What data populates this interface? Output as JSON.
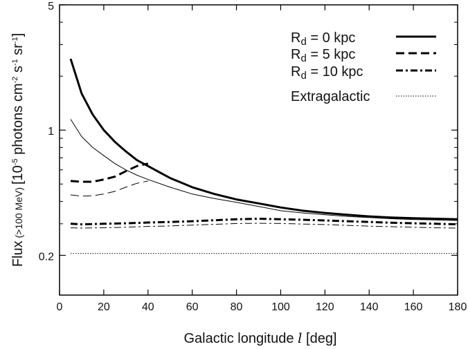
{
  "chart_data": {
    "type": "line",
    "xlabel": {
      "prefix": "Galactic longitude ",
      "var": "l",
      "suffix": " [deg]"
    },
    "ylabel": {
      "flux": "Flux",
      "energy": " (>100 MeV) ",
      "units_pre": "[10",
      "exp1": "-5",
      "units_mid1": " photons cm",
      "exp2": "-2",
      "units_mid2": " s",
      "exp3": "-1",
      "units_mid3": " sr",
      "exp4": "-1",
      "units_post": "]"
    },
    "xlim": [
      0,
      180
    ],
    "ylim": [
      0.12,
      5
    ],
    "yscale": "log",
    "x_ticks": [
      "0",
      "20",
      "40",
      "60",
      "80",
      "100",
      "120",
      "140",
      "160",
      "180"
    ],
    "y_ticks": [
      "0.2",
      "1",
      "5"
    ],
    "legend_position": "top-right",
    "legend": [
      {
        "r": "R",
        "sub": "d",
        "text": " = 0 kpc",
        "style": "solid"
      },
      {
        "r": "R",
        "sub": "d",
        "text": " = 5 kpc",
        "style": "dashed"
      },
      {
        "r": "R",
        "sub": "d",
        "text": " = 10 kpc",
        "style": "dashdot"
      },
      {
        "label": "Extragalactic",
        "style": "dotted"
      }
    ],
    "series": [
      {
        "style": "solid",
        "width": "thick",
        "x": [
          5,
          10,
          15,
          20,
          25,
          30,
          35,
          40,
          50,
          60,
          70,
          80,
          90,
          100,
          110,
          120,
          130,
          140,
          150,
          160,
          170,
          180
        ],
        "y": [
          2.5,
          1.6,
          1.22,
          1.0,
          0.86,
          0.76,
          0.68,
          0.63,
          0.54,
          0.48,
          0.44,
          0.41,
          0.39,
          0.37,
          0.355,
          0.345,
          0.337,
          0.33,
          0.325,
          0.322,
          0.32,
          0.318
        ]
      },
      {
        "style": "solid",
        "width": "thin",
        "x": [
          5,
          10,
          15,
          20,
          25,
          30,
          35,
          40,
          50,
          60,
          70,
          80,
          90,
          100,
          110,
          120,
          130,
          140,
          150,
          160,
          170,
          180
        ],
        "y": [
          1.15,
          0.92,
          0.8,
          0.72,
          0.65,
          0.6,
          0.56,
          0.53,
          0.48,
          0.44,
          0.415,
          0.395,
          0.375,
          0.355,
          0.345,
          0.337,
          0.33,
          0.325,
          0.32,
          0.317,
          0.315,
          0.313
        ]
      },
      {
        "style": "dashed",
        "width": "thick",
        "x": [
          5,
          10,
          15,
          20,
          25,
          30,
          35,
          40
        ],
        "y": [
          0.52,
          0.515,
          0.515,
          0.53,
          0.55,
          0.59,
          0.63,
          0.65
        ]
      },
      {
        "style": "dashed",
        "width": "thin",
        "x": [
          5,
          10,
          15,
          20,
          25,
          30,
          35,
          40
        ],
        "y": [
          0.435,
          0.428,
          0.43,
          0.44,
          0.455,
          0.48,
          0.505,
          0.52
        ]
      },
      {
        "style": "dashdot",
        "width": "thick",
        "x": [
          5,
          10,
          20,
          30,
          40,
          50,
          60,
          70,
          80,
          90,
          100,
          110,
          120,
          130,
          140,
          150,
          160,
          170,
          180
        ],
        "y": [
          0.3,
          0.298,
          0.3,
          0.302,
          0.305,
          0.307,
          0.31,
          0.314,
          0.318,
          0.32,
          0.318,
          0.316,
          0.313,
          0.31,
          0.307,
          0.304,
          0.302,
          0.3,
          0.298
        ]
      },
      {
        "style": "dashdot",
        "width": "thin",
        "x": [
          5,
          10,
          20,
          30,
          40,
          50,
          60,
          70,
          80,
          90,
          100,
          110,
          120,
          130,
          140,
          150,
          160,
          170,
          180
        ],
        "y": [
          0.285,
          0.284,
          0.285,
          0.287,
          0.29,
          0.292,
          0.295,
          0.298,
          0.301,
          0.302,
          0.301,
          0.299,
          0.297,
          0.294,
          0.291,
          0.289,
          0.287,
          0.285,
          0.284
        ]
      },
      {
        "style": "dotted",
        "width": "thin",
        "x": [
          5,
          180
        ],
        "y": [
          0.205,
          0.205
        ]
      }
    ]
  }
}
